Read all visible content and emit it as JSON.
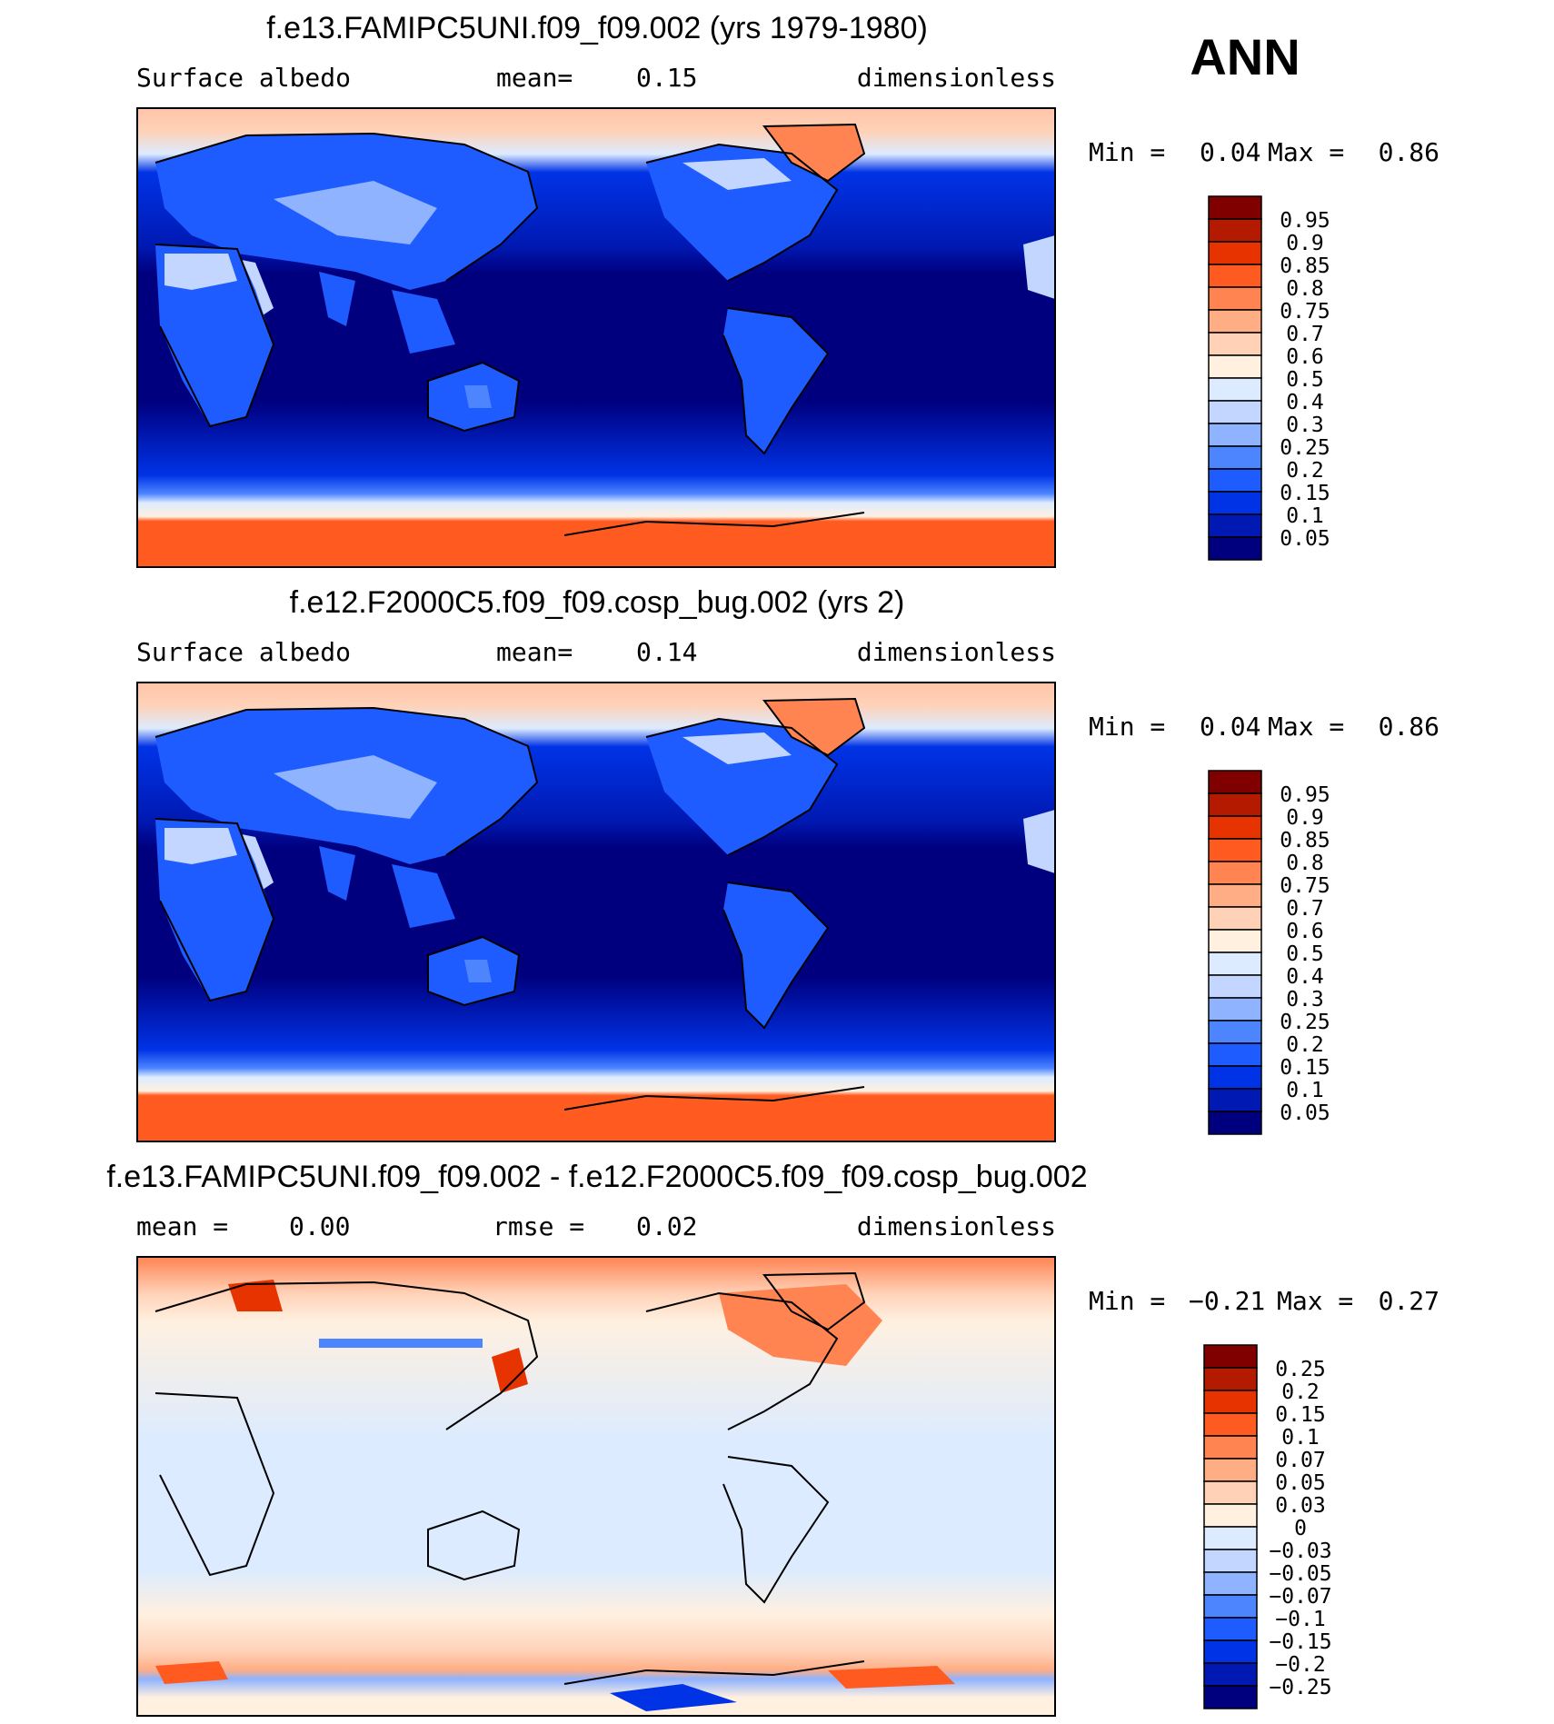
{
  "season_label": "ANN",
  "colors": {
    "abs_scale": [
      "#00007f",
      "#0019b3",
      "#0033e6",
      "#1f5cff",
      "#4d85ff",
      "#8fb3ff",
      "#c2d6ff",
      "#dcebff",
      "#fff0e0",
      "#ffd2b8",
      "#ffad85",
      "#ff8452",
      "#ff5a1f",
      "#e63300",
      "#b31a00",
      "#800000"
    ],
    "diff_scale": [
      "#00007f",
      "#0019b3",
      "#0033e6",
      "#1f5cff",
      "#4d85ff",
      "#8fb3ff",
      "#c2d6ff",
      "#dcebff",
      "#fff0e0",
      "#ffd2b8",
      "#ffad85",
      "#ff8452",
      "#ff5a1f",
      "#e63300",
      "#b31a00",
      "#800000"
    ],
    "coastline": "#000000",
    "frame": "#000000"
  },
  "panels": [
    {
      "title": "f.e13.FAMIPC5UNI.f09_f09.002 (yrs 1979-1980)",
      "left_label": "Surface albedo",
      "center_label": "mean=",
      "center_value": "0.15",
      "right_label": "dimensionless",
      "min_label": "Min =",
      "min_value": "0.04",
      "max_label": "Max =",
      "max_value": "0.86",
      "colorbar_labels": [
        "0.95",
        "0.9",
        "0.85",
        "0.8",
        "0.75",
        "0.7",
        "0.6",
        "0.5",
        "0.4",
        "0.3",
        "0.25",
        "0.2",
        "0.15",
        "0.1",
        "0.05"
      ]
    },
    {
      "title": "f.e12.F2000C5.f09_f09.cosp_bug.002 (yrs 2)",
      "left_label": "Surface albedo",
      "center_label": "mean=",
      "center_value": "0.14",
      "right_label": "dimensionless",
      "min_label": "Min =",
      "min_value": "0.04",
      "max_label": "Max =",
      "max_value": "0.86",
      "colorbar_labels": [
        "0.95",
        "0.9",
        "0.85",
        "0.8",
        "0.75",
        "0.7",
        "0.6",
        "0.5",
        "0.4",
        "0.3",
        "0.25",
        "0.2",
        "0.15",
        "0.1",
        "0.05"
      ]
    },
    {
      "title": "f.e13.FAMIPC5UNI.f09_f09.002 - f.e12.F2000C5.f09_f09.cosp_bug.002",
      "left_label": "mean =",
      "left_value": "0.00",
      "center_label": "rmse =",
      "center_value": "0.02",
      "right_label": "dimensionless",
      "min_label": "Min =",
      "min_value": "−0.21",
      "max_label": "Max =",
      "max_value": "0.27",
      "colorbar_labels": [
        "0.25",
        "0.2",
        "0.15",
        "0.1",
        "0.07",
        "0.05",
        "0.03",
        "0",
        "−0.03",
        "−0.05",
        "−0.07",
        "−0.1",
        "−0.15",
        "−0.2",
        "−0.25"
      ]
    }
  ],
  "chart_data": [
    {
      "type": "heatmap",
      "title": "f.e13.FAMIPC5UNI.f09_f09.002 (yrs 1979-1980)",
      "variable": "Surface albedo",
      "units": "dimensionless",
      "mean": 0.15,
      "min": 0.04,
      "max": 0.86,
      "levels": [
        0.05,
        0.1,
        0.15,
        0.2,
        0.25,
        0.3,
        0.4,
        0.5,
        0.6,
        0.7,
        0.75,
        0.8,
        0.85,
        0.9,
        0.95
      ]
    },
    {
      "type": "heatmap",
      "title": "f.e12.F2000C5.f09_f09.cosp_bug.002 (yrs 2)",
      "variable": "Surface albedo",
      "units": "dimensionless",
      "mean": 0.14,
      "min": 0.04,
      "max": 0.86,
      "levels": [
        0.05,
        0.1,
        0.15,
        0.2,
        0.25,
        0.3,
        0.4,
        0.5,
        0.6,
        0.7,
        0.75,
        0.8,
        0.85,
        0.9,
        0.95
      ]
    },
    {
      "type": "heatmap",
      "title": "f.e13.FAMIPC5UNI.f09_f09.002 - f.e12.F2000C5.f09_f09.cosp_bug.002",
      "units": "dimensionless",
      "mean": 0.0,
      "rmse": 0.02,
      "min": -0.21,
      "max": 0.27,
      "levels": [
        -0.25,
        -0.2,
        -0.15,
        -0.1,
        -0.07,
        -0.05,
        -0.03,
        0,
        0.03,
        0.05,
        0.07,
        0.1,
        0.15,
        0.2,
        0.25
      ]
    }
  ]
}
